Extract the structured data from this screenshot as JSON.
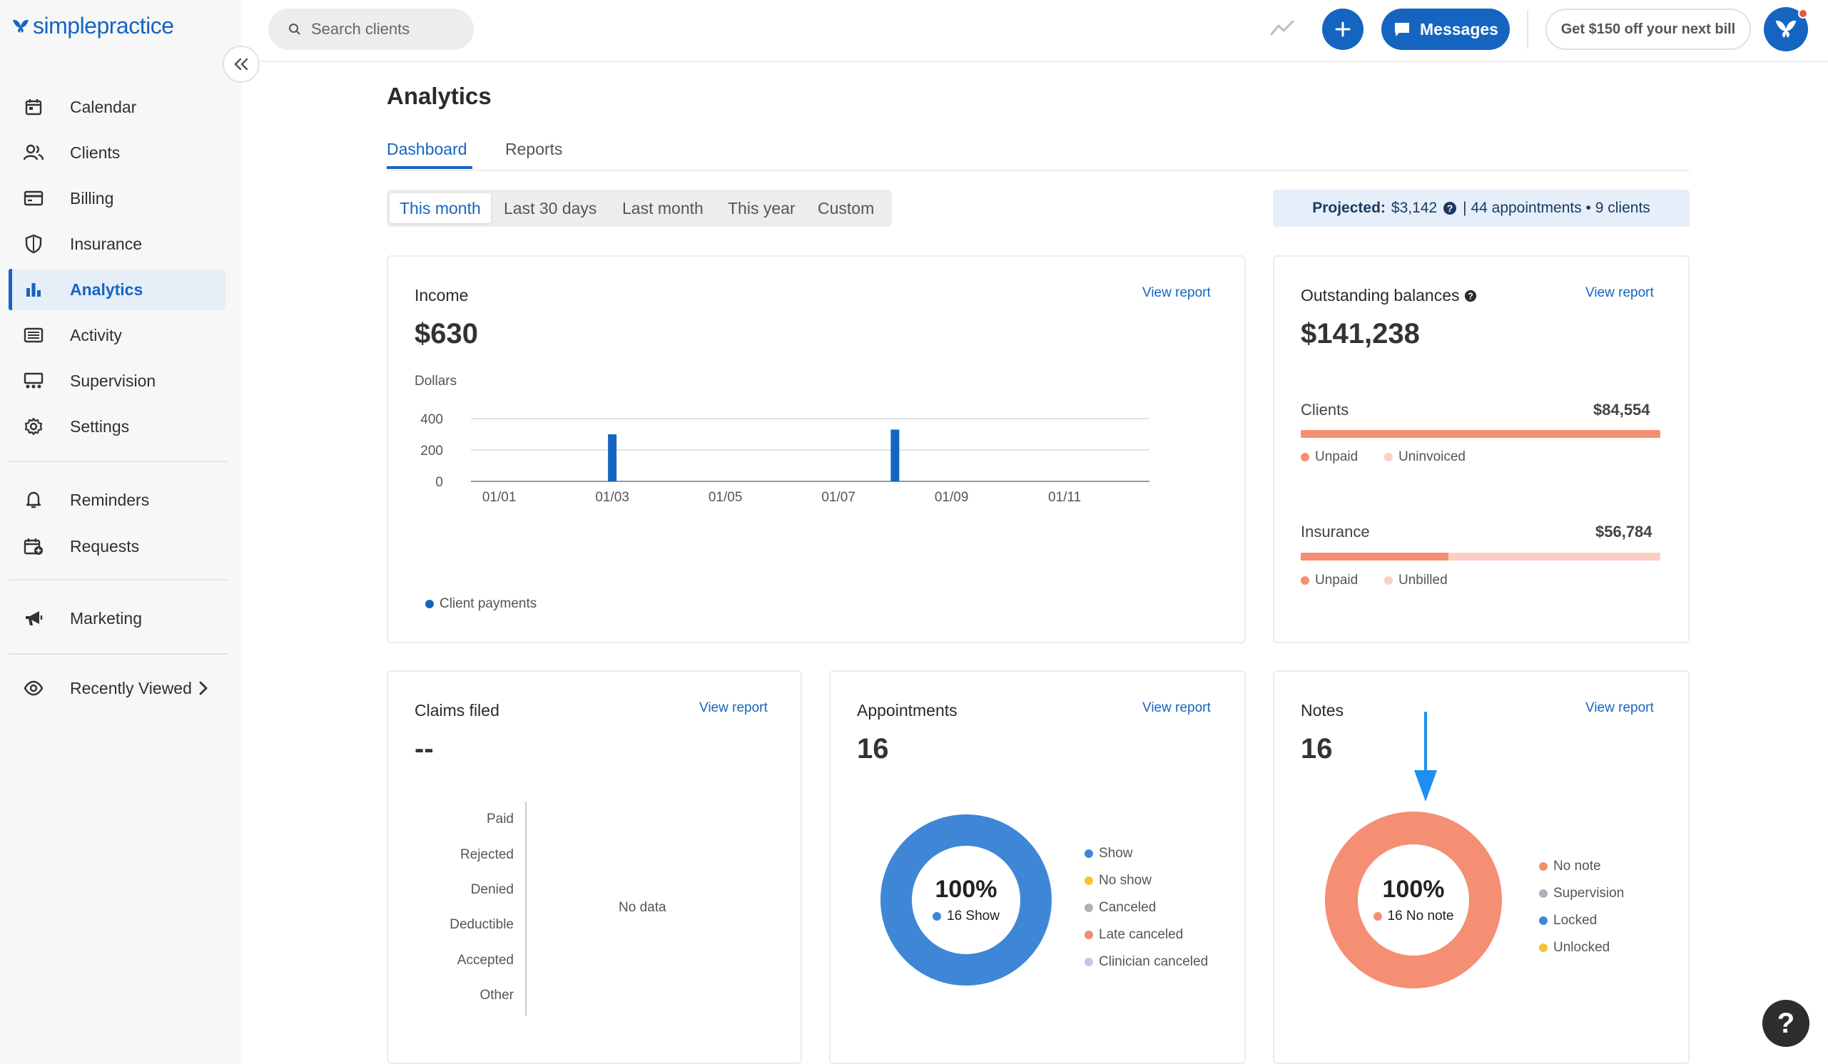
{
  "brand": {
    "logo_text": "simplepractice",
    "primary_color": "#1565c0"
  },
  "sidebar": {
    "items": [
      {
        "label": "Calendar",
        "icon": "calendar-icon"
      },
      {
        "label": "Clients",
        "icon": "clients-icon"
      },
      {
        "label": "Billing",
        "icon": "billing-icon"
      },
      {
        "label": "Insurance",
        "icon": "shield-icon"
      },
      {
        "label": "Analytics",
        "icon": "analytics-icon",
        "active": true
      },
      {
        "label": "Activity",
        "icon": "activity-icon"
      },
      {
        "label": "Supervision",
        "icon": "supervision-icon"
      },
      {
        "label": "Settings",
        "icon": "gear-icon"
      },
      {
        "label": "Reminders",
        "icon": "bell-icon"
      },
      {
        "label": "Requests",
        "icon": "requests-icon"
      },
      {
        "label": "Marketing",
        "icon": "megaphone-icon"
      },
      {
        "label": "Recently Viewed",
        "icon": "eye-icon"
      }
    ]
  },
  "topbar": {
    "search_placeholder": "Search clients",
    "messages_label": "Messages",
    "promo_label": "Get $150 off your next bill"
  },
  "page": {
    "title": "Analytics",
    "tabs": [
      {
        "label": "Dashboard",
        "active": true
      },
      {
        "label": "Reports"
      }
    ],
    "ranges": [
      {
        "label": "This month",
        "active": true
      },
      {
        "label": "Last 30 days"
      },
      {
        "label": "Last month"
      },
      {
        "label": "This year"
      },
      {
        "label": "Custom"
      }
    ],
    "projected": {
      "label": "Projected:",
      "amount": "$3,142",
      "details": "| 44 appointments • 9 clients"
    }
  },
  "income": {
    "title": "Income",
    "amount": "$630",
    "view_report": "View report",
    "unit_label": "Dollars",
    "legend": "Client payments"
  },
  "outstanding": {
    "title": "Outstanding balances",
    "amount": "$141,238",
    "view_report": "View report",
    "clients": {
      "label": "Clients",
      "amount": "$84,554",
      "unpaid_fraction": 1.0,
      "legend": [
        "Unpaid",
        "Uninvoiced"
      ]
    },
    "insurance": {
      "label": "Insurance",
      "amount": "$56,784",
      "unpaid_fraction": 0.41,
      "legend": [
        "Unpaid",
        "Unbilled"
      ]
    }
  },
  "claims": {
    "title": "Claims filed",
    "value": "--",
    "view_report": "View report",
    "categories": [
      "Paid",
      "Rejected",
      "Denied",
      "Deductible",
      "Accepted",
      "Other"
    ],
    "empty_text": "No data"
  },
  "appointments": {
    "title": "Appointments",
    "value": "16",
    "view_report": "View report",
    "center_pct": "100%",
    "center_label": "16 Show",
    "legend": [
      {
        "label": "Show",
        "color": "#3f87d6"
      },
      {
        "label": "No show",
        "color": "#f4c430"
      },
      {
        "label": "Canceled",
        "color": "#a9b2bd"
      },
      {
        "label": "Late canceled",
        "color": "#f08a72"
      },
      {
        "label": "Clinician canceled",
        "color": "#c9c5f2"
      }
    ]
  },
  "notes": {
    "title": "Notes",
    "value": "16",
    "view_report": "View report",
    "center_pct": "100%",
    "center_label": "16 No note",
    "legend": [
      {
        "label": "No note",
        "color": "#f58f73"
      },
      {
        "label": "Supervision",
        "color": "#a9b2bd"
      },
      {
        "label": "Locked",
        "color": "#3f87d6"
      },
      {
        "label": "Unlocked",
        "color": "#f4c430"
      }
    ]
  },
  "chart_data": [
    {
      "type": "bar",
      "title": "Income",
      "ylabel": "Dollars",
      "x_ticks": [
        "01/01",
        "01/03",
        "01/05",
        "01/07",
        "01/09",
        "01/11"
      ],
      "y_ticks": [
        "0",
        "200",
        "400"
      ],
      "ylim": [
        0,
        400
      ],
      "series": [
        {
          "name": "Client payments",
          "color": "#1565c0",
          "points": [
            {
              "x": "01/03",
              "y": 300
            },
            {
              "x": "01/08",
              "y": 330
            }
          ]
        }
      ]
    },
    {
      "type": "pie",
      "title": "Appointments",
      "values": [
        {
          "label": "Show",
          "value": 16
        }
      ]
    },
    {
      "type": "pie",
      "title": "Notes",
      "values": [
        {
          "label": "No note",
          "value": 16
        }
      ]
    }
  ]
}
